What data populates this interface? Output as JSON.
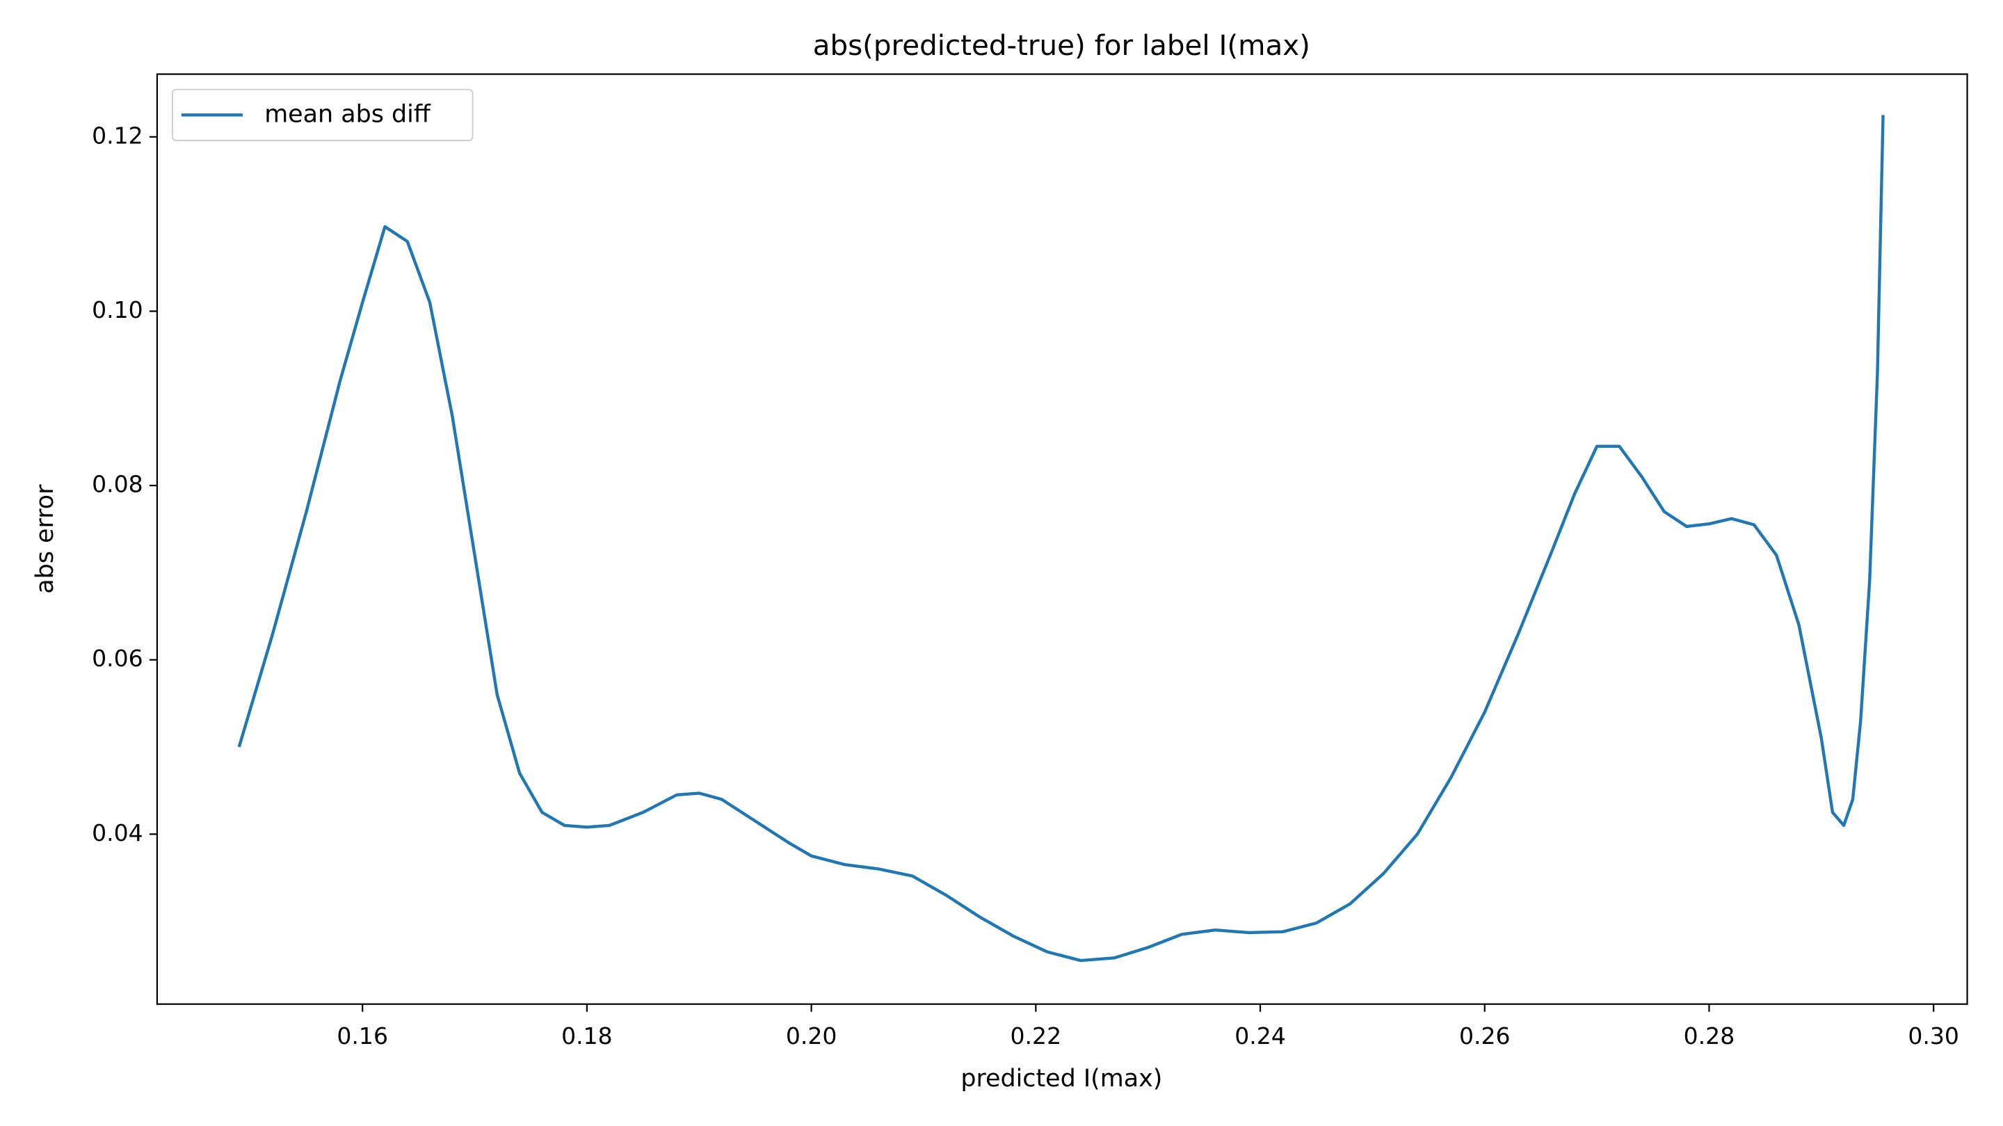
{
  "chart_data": {
    "type": "line",
    "title": "abs(predicted-true) for label I(max)",
    "x_label": "predicted I(max)",
    "y_label": "abs error",
    "x": [
      0.149,
      0.152,
      0.155,
      0.158,
      0.16,
      0.162,
      0.164,
      0.166,
      0.168,
      0.17,
      0.172,
      0.174,
      0.176,
      0.178,
      0.18,
      0.182,
      0.185,
      0.188,
      0.19,
      0.192,
      0.195,
      0.198,
      0.2,
      0.203,
      0.206,
      0.209,
      0.212,
      0.215,
      0.218,
      0.221,
      0.224,
      0.227,
      0.23,
      0.233,
      0.236,
      0.239,
      0.242,
      0.245,
      0.248,
      0.251,
      0.254,
      0.257,
      0.26,
      0.263,
      0.266,
      0.268,
      0.27,
      0.272,
      0.274,
      0.276,
      0.278,
      0.28,
      0.282,
      0.284,
      0.286,
      0.288,
      0.29,
      0.291,
      0.292,
      0.2928,
      0.2935,
      0.2943,
      0.295,
      0.2955
    ],
    "series": [
      {
        "name": "mean abs diff",
        "color": "#1f77b4",
        "values": [
          0.05,
          0.063,
          0.077,
          0.092,
          0.101,
          0.1097,
          0.108,
          0.101,
          0.088,
          0.072,
          0.056,
          0.047,
          0.0425,
          0.041,
          0.0408,
          0.041,
          0.0425,
          0.0445,
          0.0447,
          0.044,
          0.0415,
          0.039,
          0.0375,
          0.0365,
          0.036,
          0.0352,
          0.033,
          0.0305,
          0.0283,
          0.0265,
          0.0255,
          0.0258,
          0.027,
          0.0285,
          0.029,
          0.0287,
          0.0288,
          0.0298,
          0.032,
          0.0355,
          0.04,
          0.0465,
          0.054,
          0.063,
          0.0725,
          0.079,
          0.0845,
          0.0845,
          0.081,
          0.077,
          0.0753,
          0.0756,
          0.0762,
          0.0755,
          0.072,
          0.064,
          0.051,
          0.0425,
          0.041,
          0.044,
          0.053,
          0.069,
          0.093,
          0.1225
        ]
      }
    ],
    "xlim": [
      0.1417,
      0.303
    ],
    "ylim": [
      0.0205,
      0.1272
    ],
    "xticks": [
      0.16,
      0.18,
      {
        "value": 0.2,
        "label": "0.20"
      },
      0.22,
      0.24,
      0.26,
      0.28,
      {
        "value": 0.3,
        "label": "0.30"
      }
    ],
    "yticks": [
      0.04,
      0.06,
      0.08,
      {
        "value": 0.1,
        "label": "0.10"
      },
      0.12
    ],
    "legend": "upper left",
    "grid": false
  }
}
